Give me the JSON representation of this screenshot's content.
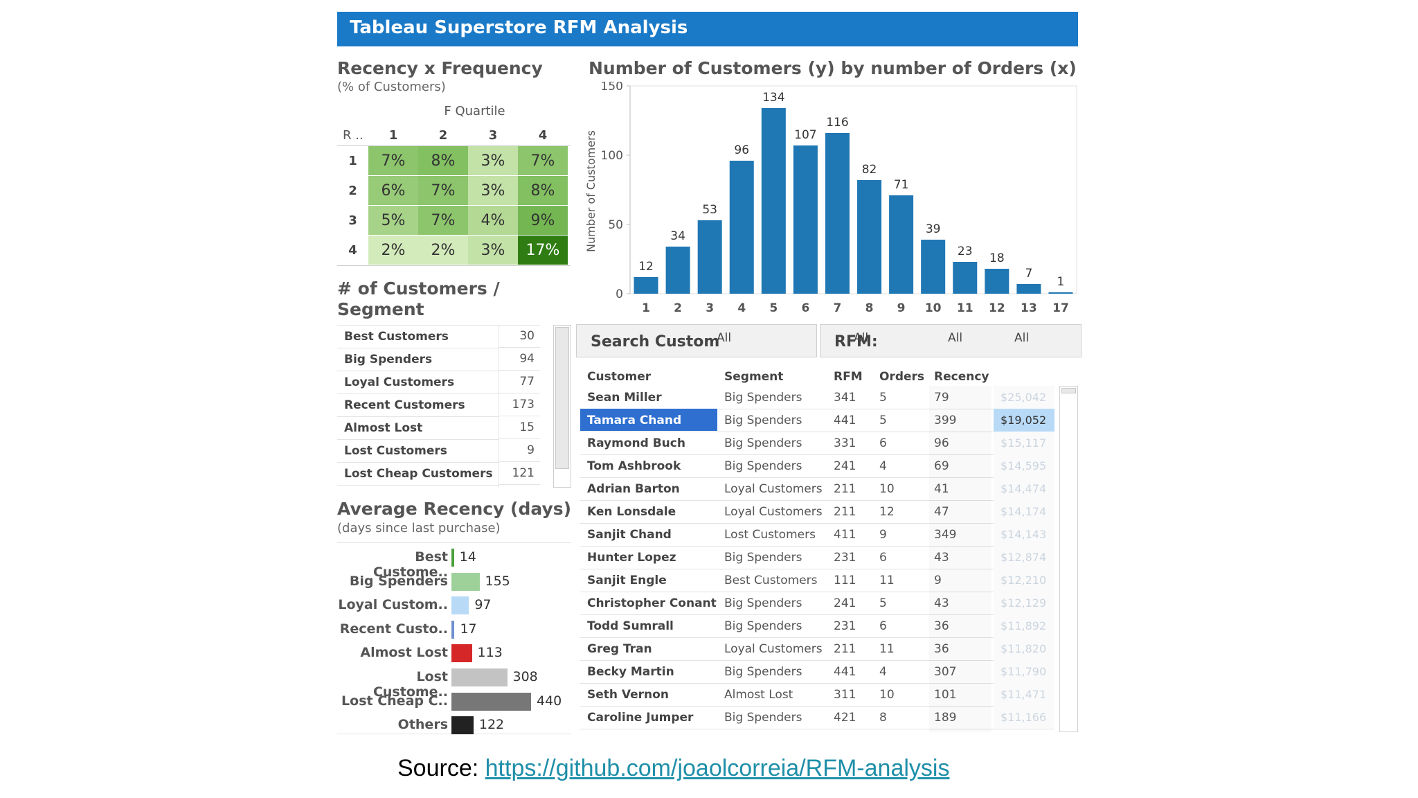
{
  "banner": {
    "title": "Tableau Superstore RFM Analysis"
  },
  "rxf": {
    "title": "Recency x Frequency",
    "subtitle": "(% of Customers)",
    "col_header": "F Quartile",
    "row_header": "R ..",
    "cols": [
      "1",
      "2",
      "3",
      "4"
    ],
    "rows": [
      {
        "label": "1",
        "values": [
          {
            "text": "7%",
            "color": "#8cc56c"
          },
          {
            "text": "8%",
            "color": "#82c061"
          },
          {
            "text": "3%",
            "color": "#c3e2a7"
          },
          {
            "text": "7%",
            "color": "#8cc56c"
          }
        ]
      },
      {
        "label": "2",
        "values": [
          {
            "text": "6%",
            "color": "#98cb78"
          },
          {
            "text": "7%",
            "color": "#8cc56c"
          },
          {
            "text": "3%",
            "color": "#c3e2a7"
          },
          {
            "text": "8%",
            "color": "#82c061"
          }
        ]
      },
      {
        "label": "3",
        "values": [
          {
            "text": "5%",
            "color": "#a6d388"
          },
          {
            "text": "7%",
            "color": "#8cc56c"
          },
          {
            "text": "4%",
            "color": "#b3d995"
          },
          {
            "text": "9%",
            "color": "#74b752"
          }
        ]
      },
      {
        "label": "4",
        "values": [
          {
            "text": "2%",
            "color": "#d3ebbb"
          },
          {
            "text": "2%",
            "color": "#d3ebbb"
          },
          {
            "text": "3%",
            "color": "#c3e2a7"
          },
          {
            "text": "17%",
            "color": "#2f7d12",
            "text_color": "#ffffff"
          }
        ]
      }
    ]
  },
  "segments": {
    "title": "# of Customers / Segment",
    "items": [
      {
        "name": "Best Customers",
        "count": "30"
      },
      {
        "name": "Big Spenders",
        "count": "94"
      },
      {
        "name": "Loyal Customers",
        "count": "77"
      },
      {
        "name": "Recent Customers",
        "count": "173"
      },
      {
        "name": "Almost Lost",
        "count": "15"
      },
      {
        "name": "Lost Customers",
        "count": "9"
      },
      {
        "name": "Lost Cheap Customers",
        "count": "121"
      }
    ]
  },
  "avg_recency": {
    "title": "Average Recency (days)",
    "subtitle": "(days since last purchase)",
    "items": [
      {
        "label": "Best Custome..",
        "value": 14,
        "text": "14",
        "color": "#4aa03c"
      },
      {
        "label": "Big Spenders",
        "value": 155,
        "text": "155",
        "color": "#9ed19a"
      },
      {
        "label": "Loyal Custom..",
        "value": 97,
        "text": "97",
        "color": "#b8daf6"
      },
      {
        "label": "Recent Custo..",
        "value": 17,
        "text": "17",
        "color": "#6f8fcf"
      },
      {
        "label": "Almost Lost",
        "value": 113,
        "text": "113",
        "color": "#d62728"
      },
      {
        "label": "Lost Custome..",
        "value": 308,
        "text": "308",
        "color": "#c3c3c3"
      },
      {
        "label": "Lost Cheap C..",
        "value": 440,
        "text": "440",
        "color": "#777777"
      },
      {
        "label": "Others",
        "value": 122,
        "text": "122",
        "color": "#222222"
      }
    ]
  },
  "chart_data": {
    "type": "bar",
    "title": "Number of Customers (y) by number of Orders (x)",
    "xlabel": "",
    "ylabel": "Number of Customers",
    "categories": [
      "1",
      "2",
      "3",
      "4",
      "5",
      "6",
      "7",
      "8",
      "9",
      "10",
      "11",
      "12",
      "13",
      "17"
    ],
    "values": [
      12,
      34,
      53,
      96,
      134,
      107,
      116,
      82,
      71,
      39,
      23,
      18,
      7,
      1
    ],
    "ylim": [
      0,
      150
    ],
    "yticks": [
      "0",
      "50",
      "100",
      "150"
    ],
    "ytick_values": [
      0,
      50,
      100,
      150
    ],
    "color": "#1f77b4"
  },
  "filters": {
    "search_label": "Search Custom",
    "search_value": "All",
    "rfm_label": "RFM:",
    "rfm_values": [
      "All",
      "All",
      "All"
    ]
  },
  "table": {
    "headers": [
      "Customer",
      "Segment",
      "RFM",
      "Orders",
      "Recency"
    ],
    "rows": [
      {
        "customer": "Sean Miller",
        "segment": "Big Spenders",
        "rfm": "341",
        "orders": "5",
        "recency": "79",
        "sales": "$25,042"
      },
      {
        "customer": "Tamara Chand",
        "segment": "Big Spenders",
        "rfm": "441",
        "orders": "5",
        "recency": "399",
        "sales": "$19,052"
      },
      {
        "customer": "Raymond Buch",
        "segment": "Big Spenders",
        "rfm": "331",
        "orders": "6",
        "recency": "96",
        "sales": "$15,117"
      },
      {
        "customer": "Tom Ashbrook",
        "segment": "Big Spenders",
        "rfm": "241",
        "orders": "4",
        "recency": "69",
        "sales": "$14,595"
      },
      {
        "customer": "Adrian Barton",
        "segment": "Loyal Customers",
        "rfm": "211",
        "orders": "10",
        "recency": "41",
        "sales": "$14,474"
      },
      {
        "customer": "Ken Lonsdale",
        "segment": "Loyal Customers",
        "rfm": "211",
        "orders": "12",
        "recency": "47",
        "sales": "$14,174"
      },
      {
        "customer": "Sanjit Chand",
        "segment": "Lost Customers",
        "rfm": "411",
        "orders": "9",
        "recency": "349",
        "sales": "$14,143"
      },
      {
        "customer": "Hunter Lopez",
        "segment": "Big Spenders",
        "rfm": "231",
        "orders": "6",
        "recency": "43",
        "sales": "$12,874"
      },
      {
        "customer": "Sanjit Engle",
        "segment": "Best Customers",
        "rfm": "111",
        "orders": "11",
        "recency": "9",
        "sales": "$12,210"
      },
      {
        "customer": "Christopher Conant",
        "segment": "Big Spenders",
        "rfm": "241",
        "orders": "5",
        "recency": "43",
        "sales": "$12,129"
      },
      {
        "customer": "Todd Sumrall",
        "segment": "Big Spenders",
        "rfm": "231",
        "orders": "6",
        "recency": "36",
        "sales": "$11,892"
      },
      {
        "customer": "Greg Tran",
        "segment": "Loyal Customers",
        "rfm": "211",
        "orders": "11",
        "recency": "36",
        "sales": "$11,820"
      },
      {
        "customer": "Becky Martin",
        "segment": "Big Spenders",
        "rfm": "441",
        "orders": "4",
        "recency": "307",
        "sales": "$11,790"
      },
      {
        "customer": "Seth Vernon",
        "segment": "Almost Lost",
        "rfm": "311",
        "orders": "10",
        "recency": "101",
        "sales": "$11,471"
      },
      {
        "customer": "Caroline Jumper",
        "segment": "Big Spenders",
        "rfm": "421",
        "orders": "8",
        "recency": "189",
        "sales": "$11,166"
      }
    ],
    "selected_index": 1
  },
  "source": {
    "label": "Source:",
    "url": "https://github.com/joaolcorreia/RFM-analysis"
  }
}
